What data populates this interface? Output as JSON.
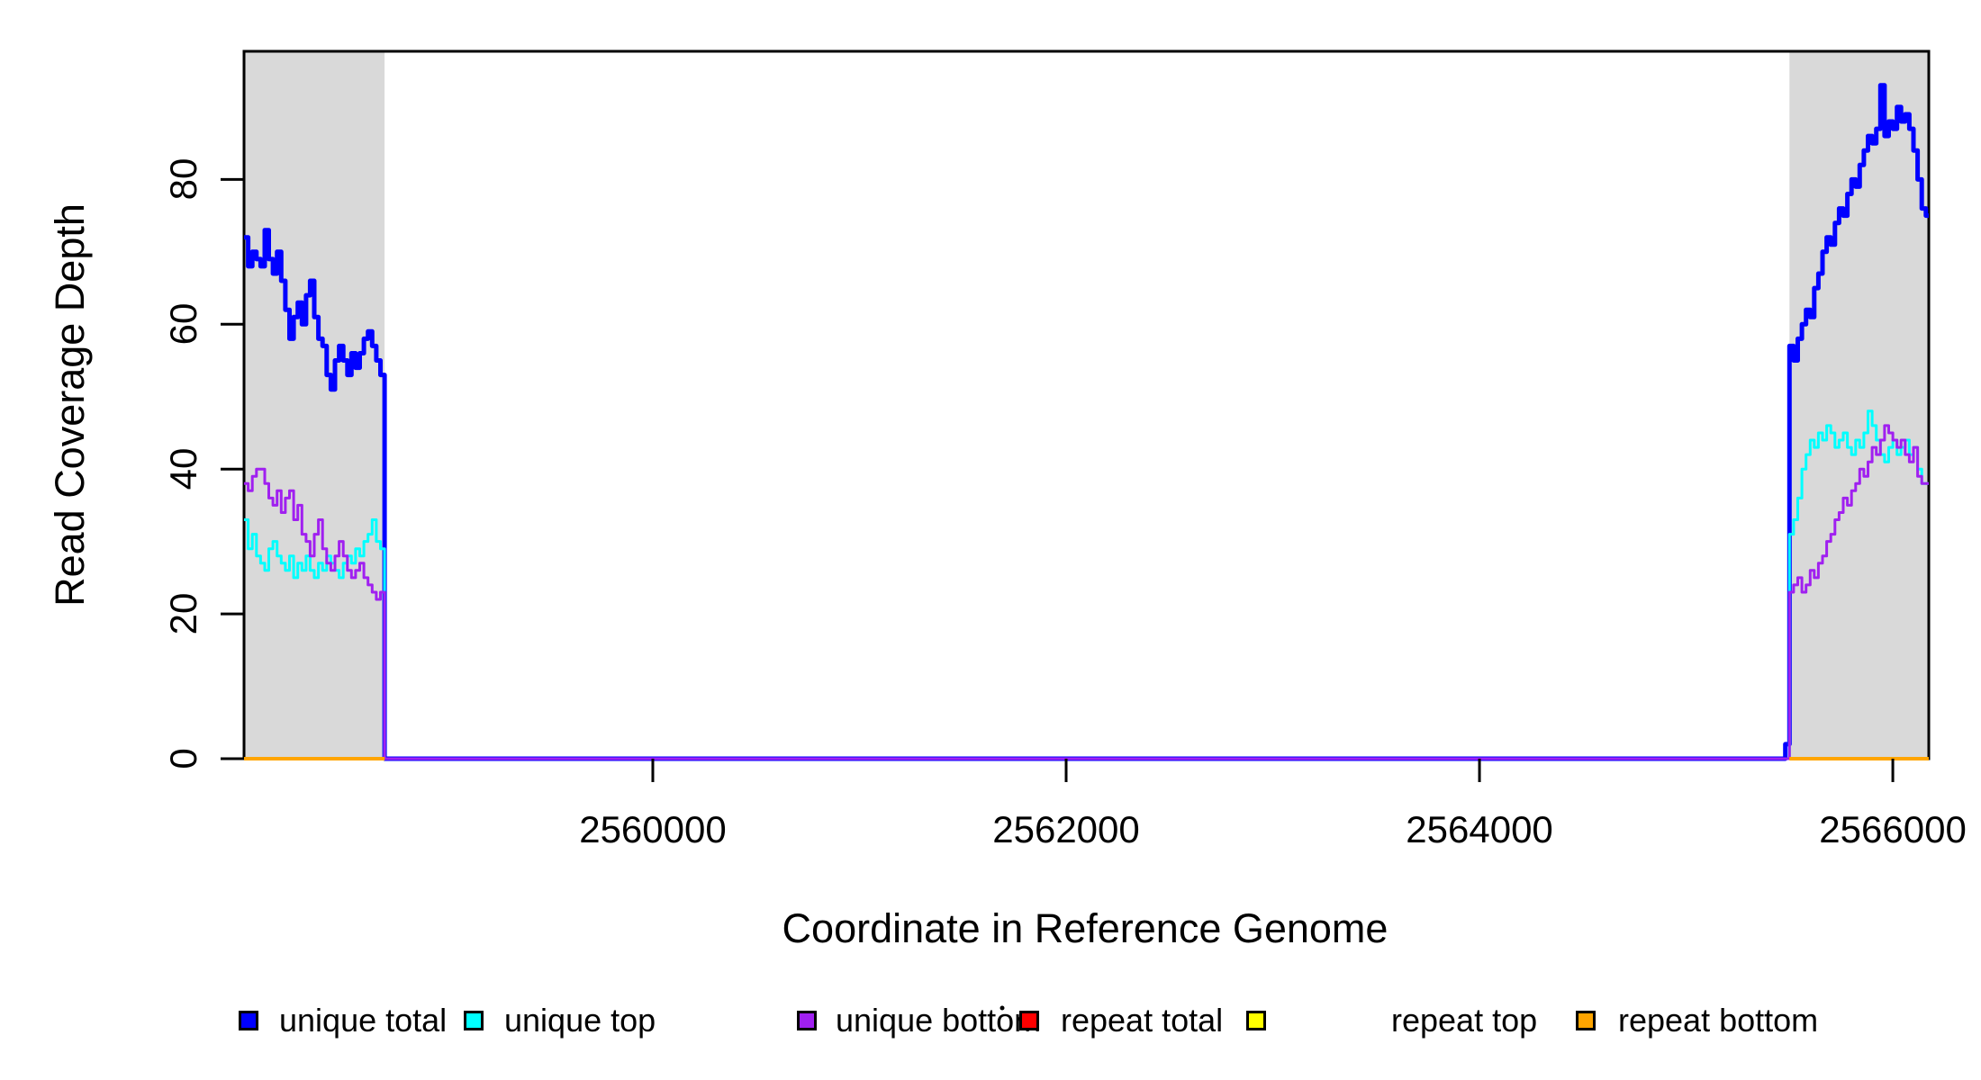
{
  "chart_data": {
    "type": "line",
    "subtype": "step-coverage",
    "title": "",
    "xlabel": "Coordinate in Reference Genome",
    "ylabel": "Read Coverage Depth",
    "xlim": [
      2558022,
      2566174
    ],
    "ylim": [
      0,
      97.7
    ],
    "grid": false,
    "x_ticks": {
      "values": [
        2560000,
        2562000,
        2564000,
        2566000
      ],
      "labels": [
        "2560000",
        "2562000",
        "2564000",
        "2566000"
      ]
    },
    "y_ticks": {
      "values": [
        0,
        20,
        40,
        60,
        80
      ],
      "labels": [
        "0",
        "20",
        "40",
        "60",
        "80"
      ]
    },
    "bin_size_bp": 20,
    "shaded_regions": {
      "color": "#D9D9D9",
      "ranges": [
        [
          2558022,
          2558702
        ],
        [
          2565500,
          2566174
        ]
      ]
    },
    "axis_color": "#000000",
    "series": [
      {
        "name": "unique total",
        "color": "#0000FF",
        "width": 5,
        "segments": [
          {
            "x0": 2558022,
            "step": 20,
            "values": [
              72,
              68,
              70,
              69,
              68,
              73,
              69,
              67,
              70,
              66,
              62,
              58,
              61,
              63,
              60,
              64,
              66,
              61,
              58,
              57,
              53,
              51,
              55,
              57,
              55,
              53,
              56,
              54,
              56,
              58,
              59,
              57,
              55,
              53
            ]
          },
          {
            "x0": 2558702,
            "step": 6778,
            "values": [
              0
            ]
          },
          {
            "x0": 2565480,
            "step": 20,
            "values": [
              2
            ]
          },
          {
            "x0": 2565500,
            "step": 20,
            "values": [
              57,
              55,
              58,
              60,
              62,
              61,
              65,
              67,
              70,
              72,
              71,
              74,
              76,
              75,
              78,
              80,
              79,
              82,
              84,
              86,
              85,
              87,
              93,
              86,
              88,
              87,
              90,
              88,
              89,
              87,
              84,
              80,
              76,
              75
            ]
          }
        ]
      },
      {
        "name": "unique top",
        "color": "#00FFFF",
        "width": 3,
        "segments": [
          {
            "x0": 2558022,
            "step": 20,
            "values": [
              33,
              29,
              31,
              28,
              27,
              26,
              29,
              30,
              28,
              27,
              26,
              28,
              25,
              27,
              26,
              28,
              26,
              25,
              27,
              26,
              28,
              27,
              26,
              25,
              27,
              28,
              27,
              29,
              28,
              30,
              31,
              33,
              30,
              29
            ]
          },
          {
            "x0": 2558702,
            "step": 6798,
            "values": [
              0
            ]
          },
          {
            "x0": 2565500,
            "step": 20,
            "values": [
              31,
              33,
              36,
              40,
              42,
              44,
              43,
              45,
              44,
              46,
              45,
              43,
              44,
              45,
              43,
              42,
              44,
              43,
              45,
              48,
              46,
              44,
              42,
              41,
              43,
              44,
              42,
              43,
              44,
              42,
              43,
              40,
              38,
              38
            ]
          }
        ]
      },
      {
        "name": "unique bottom",
        "color": "#A020F0",
        "width": 3,
        "segments": [
          {
            "x0": 2558022,
            "step": 20,
            "values": [
              38,
              37,
              39,
              40,
              40,
              38,
              36,
              35,
              37,
              34,
              36,
              37,
              33,
              35,
              31,
              30,
              28,
              31,
              33,
              29,
              27,
              26,
              28,
              30,
              28,
              26,
              25,
              26,
              27,
              25,
              24,
              23,
              22,
              23
            ]
          },
          {
            "x0": 2558702,
            "step": 6798,
            "values": [
              0
            ]
          },
          {
            "x0": 2565500,
            "step": 20,
            "values": [
              23,
              24,
              25,
              23,
              24,
              26,
              25,
              27,
              28,
              30,
              31,
              33,
              34,
              36,
              35,
              37,
              38,
              40,
              39,
              41,
              43,
              42,
              44,
              46,
              45,
              44,
              43,
              44,
              42,
              41,
              43,
              39,
              38,
              38
            ]
          }
        ]
      },
      {
        "name": "repeat total",
        "color": "#FF0000",
        "width": 3,
        "segments": [
          {
            "x0": 2558022,
            "step": 680,
            "values": [
              0
            ]
          },
          {
            "x0": 2565500,
            "step": 680,
            "values": [
              0
            ]
          }
        ]
      },
      {
        "name": "repeat top",
        "color": "#FFFF00",
        "width": 3,
        "segments": [
          {
            "x0": 2558022,
            "step": 680,
            "values": [
              0
            ]
          },
          {
            "x0": 2565500,
            "step": 680,
            "values": [
              0
            ]
          }
        ]
      },
      {
        "name": "repeat bottom",
        "color": "#FFA500",
        "width": 4,
        "segments": [
          {
            "x0": 2558022,
            "step": 680,
            "values": [
              0
            ]
          },
          {
            "x0": 2565500,
            "step": 680,
            "values": [
              0
            ]
          }
        ]
      }
    ],
    "legend": {
      "position": "bottom",
      "entries": [
        {
          "label": "unique total",
          "color": "#0000FF"
        },
        {
          "label": "unique top",
          "color": "#00FFFF"
        },
        {
          "label": "unique bottom",
          "color": "#A020F0"
        },
        {
          "label": "repeat total",
          "color": "#FF0000"
        },
        {
          "label": "repeat top",
          "color": "#FFFF00"
        },
        {
          "label": "repeat bottom",
          "color": "#FFA500"
        }
      ],
      "stray_mark": {
        "glyph": "."
      }
    }
  }
}
